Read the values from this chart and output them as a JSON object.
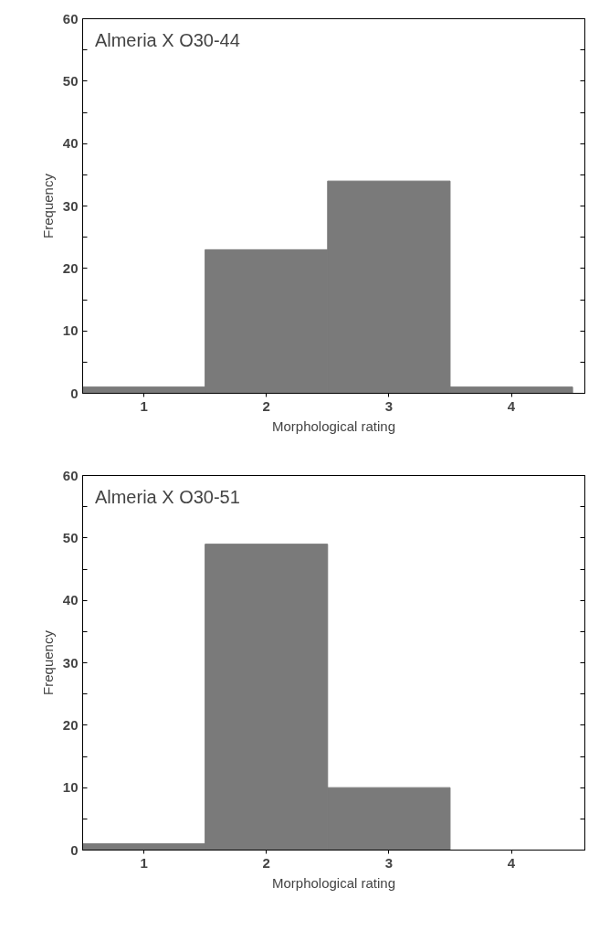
{
  "chart_data": [
    {
      "type": "bar",
      "title": "Almeria  X  O30-44",
      "categories": [
        "1",
        "2",
        "3",
        "4"
      ],
      "values": [
        1,
        23,
        34,
        1
      ],
      "color": "#7a7a7a",
      "xlabel": "Morphological rating",
      "ylabel": "Frequency",
      "ylim": [
        0,
        60
      ],
      "yticks": [
        0,
        {
          "value": 5,
          "label": null
        },
        10,
        {
          "value": 15,
          "label": null
        },
        20,
        {
          "value": 25,
          "label": null
        },
        30,
        {
          "value": 35,
          "label": null
        },
        40,
        {
          "value": 45,
          "label": null
        },
        50,
        {
          "value": 55,
          "label": null
        },
        60
      ],
      "grid": false
    },
    {
      "type": "bar",
      "title": "Almeria  X  O30-51",
      "categories": [
        "1",
        "2",
        "3",
        "4"
      ],
      "values": [
        1,
        49,
        10,
        0
      ],
      "color": "#7a7a7a",
      "xlabel": "Morphological rating",
      "ylabel": "Frequency",
      "ylim": [
        0,
        60
      ],
      "yticks": [
        0,
        {
          "value": 5,
          "label": null
        },
        10,
        {
          "value": 15,
          "label": null
        },
        20,
        {
          "value": 25,
          "label": null
        },
        30,
        {
          "value": 35,
          "label": null
        },
        40,
        {
          "value": 45,
          "label": null
        },
        50,
        {
          "value": 55,
          "label": null
        },
        60
      ],
      "grid": false
    }
  ]
}
